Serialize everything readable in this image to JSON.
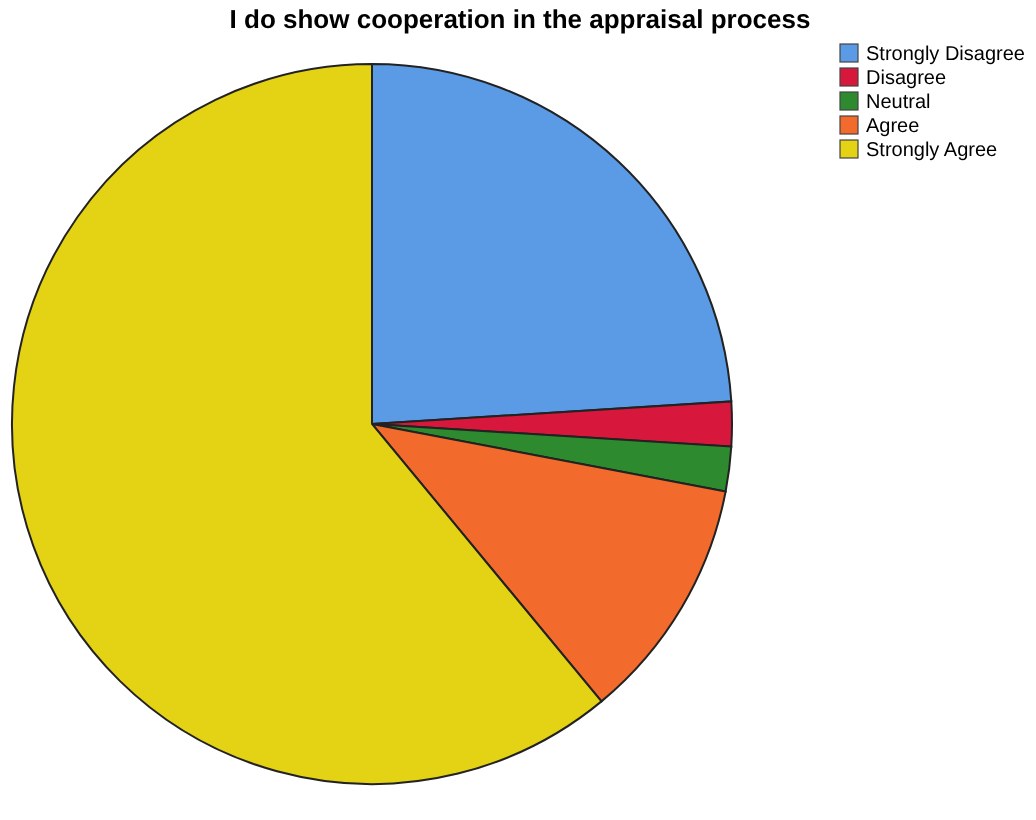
{
  "chart_data": {
    "type": "pie",
    "title": "I do show cooperation in the appraisal process",
    "categories": [
      "Strongly Disagree",
      "Disagree",
      "Neutral",
      "Agree",
      "Strongly Agree"
    ],
    "values": [
      24,
      2,
      2,
      11,
      61
    ],
    "colors": [
      "#5b9be6",
      "#d8173c",
      "#2e8a2e",
      "#f26a2c",
      "#e3d314"
    ],
    "legend": "top right"
  }
}
